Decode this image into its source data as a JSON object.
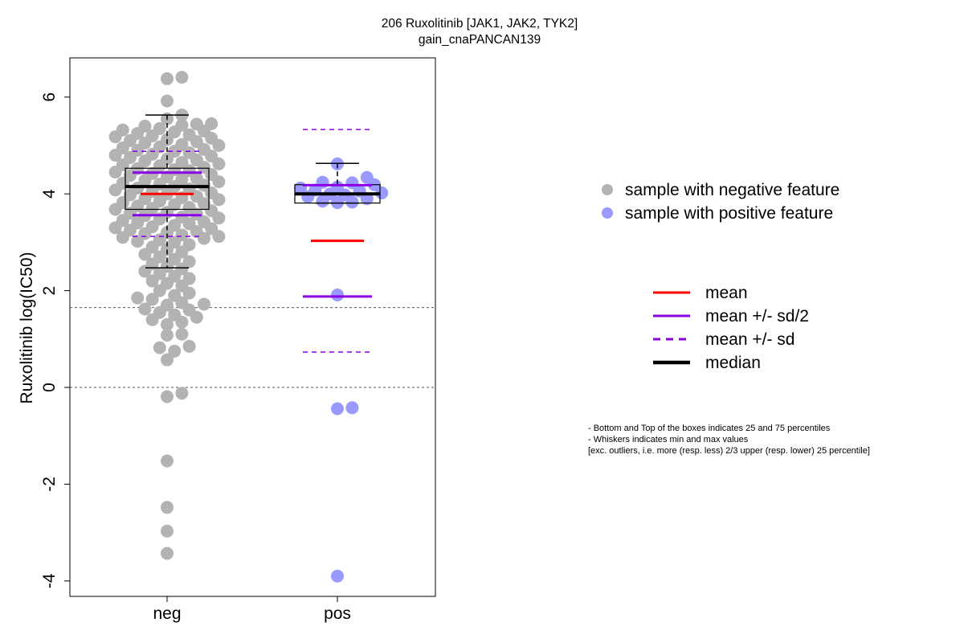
{
  "chart_data": {
    "type": "scatter",
    "title": "206 Ruxolitinib [JAK1, JAK2, TYK2]",
    "subtitle": "gain_cnaPANCAN139",
    "ylabel": "Ruxolitinib log(IC50)",
    "xlabel": "",
    "categories": [
      "neg",
      "pos"
    ],
    "ylim": [
      -4.3,
      6.8
    ],
    "yticks": [
      -4,
      -2,
      0,
      2,
      4,
      6
    ],
    "ytick_labels": [
      "-4",
      "-2",
      "0",
      "2",
      "4",
      "6"
    ],
    "reference_lines": [
      1.65,
      0
    ],
    "colors": {
      "neg": "#b3b3b3",
      "pos": "#9999ff",
      "mean": "#ff0000",
      "sd": "#8a00e6",
      "median": "#000000"
    },
    "groups": [
      {
        "name": "neg",
        "q1": 3.68,
        "q3": 4.53,
        "median": 4.15,
        "whisker_low": 2.47,
        "whisker_high": 5.63,
        "mean": 4.0,
        "half_sd_low": 3.56,
        "half_sd_high": 4.44,
        "sd_low": 3.12,
        "sd_high": 4.88,
        "points": [
          6.38,
          6.41,
          5.92,
          5.63,
          5.55,
          5.42,
          5.4,
          5.45,
          5.44,
          5.35,
          5.32,
          5.3,
          5.28,
          5.25,
          5.22,
          5.2,
          5.18,
          5.15,
          5.12,
          5.1,
          5.08,
          5.05,
          5.02,
          5.0,
          4.97,
          4.95,
          4.92,
          4.9,
          4.88,
          4.85,
          4.82,
          4.8,
          4.78,
          4.75,
          4.72,
          4.7,
          4.68,
          4.65,
          4.62,
          4.6,
          4.58,
          4.55,
          4.52,
          4.5,
          4.48,
          4.45,
          4.42,
          4.4,
          4.38,
          4.35,
          4.32,
          4.3,
          4.28,
          4.25,
          4.22,
          4.2,
          4.18,
          4.15,
          4.12,
          4.1,
          4.08,
          4.05,
          4.02,
          4.0,
          3.98,
          3.95,
          3.92,
          3.9,
          3.88,
          3.85,
          3.82,
          3.8,
          3.78,
          3.75,
          3.72,
          3.7,
          3.68,
          3.65,
          3.62,
          3.6,
          3.58,
          3.55,
          3.52,
          3.5,
          3.48,
          3.45,
          3.42,
          3.4,
          3.38,
          3.35,
          3.32,
          3.3,
          3.28,
          3.25,
          3.22,
          3.2,
          3.18,
          3.15,
          3.12,
          3.1,
          3.08,
          3.05,
          3.02,
          3.0,
          2.95,
          2.9,
          2.85,
          2.8,
          2.75,
          2.7,
          2.65,
          2.6,
          2.55,
          2.5,
          2.45,
          2.4,
          2.35,
          2.3,
          2.25,
          2.2,
          2.15,
          2.1,
          2.0,
          1.95,
          1.9,
          1.85,
          1.82,
          1.75,
          1.72,
          1.7,
          1.62,
          1.6,
          1.55,
          1.5,
          1.45,
          1.4,
          1.35,
          1.3,
          1.1,
          1.08,
          0.85,
          0.82,
          0.75,
          0.57,
          -0.12,
          -0.19,
          -1.52,
          -2.48,
          -2.97,
          -3.43
        ]
      },
      {
        "name": "pos",
        "q1": 3.81,
        "q3": 4.19,
        "median": 4.0,
        "whisker_low": 3.81,
        "whisker_high": 4.63,
        "mean": 3.03,
        "half_sd_low": 1.88,
        "half_sd_high": 4.18,
        "sd_low": 0.73,
        "sd_high": 5.33,
        "points": [
          4.62,
          4.34,
          4.24,
          4.23,
          4.19,
          4.14,
          4.12,
          4.08,
          4.06,
          4.02,
          4.0,
          3.98,
          3.94,
          3.9,
          3.85,
          3.83,
          3.82,
          1.91,
          -0.42,
          -0.44,
          -3.9
        ]
      }
    ],
    "legend": {
      "position": "right",
      "points": [
        {
          "label": "sample with negative feature",
          "color": "#b3b3b3"
        },
        {
          "label": "sample with positive feature",
          "color": "#9999ff"
        }
      ],
      "lines": [
        {
          "label": "mean",
          "color": "#ff0000",
          "style": "solid"
        },
        {
          "label": "mean +/- sd/2",
          "color": "#8a00e6",
          "style": "solid"
        },
        {
          "label": "mean +/- sd",
          "color": "#8a00e6",
          "style": "dashed"
        },
        {
          "label": "median",
          "color": "#000000",
          "style": "thick"
        }
      ]
    },
    "notes": [
      "- Bottom and Top of the boxes indicates 25 and 75 percentiles",
      "- Whiskers indicates min and max values",
      "[exc. outliers, i.e. more (resp. less) 2/3 upper (resp. lower) 25 percentile]"
    ]
  }
}
